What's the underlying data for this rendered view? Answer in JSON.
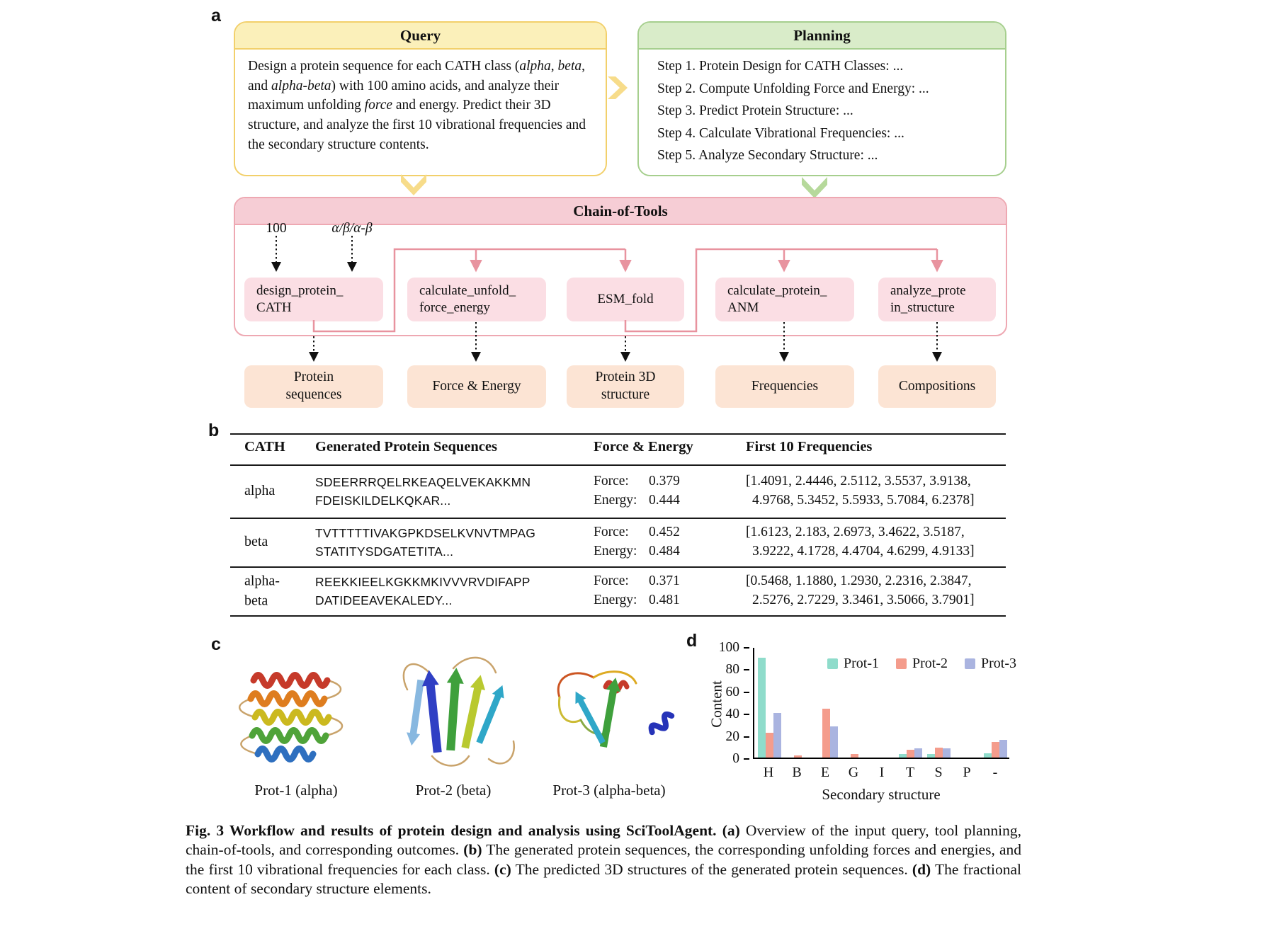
{
  "colors": {
    "query-border": "#F2D06B",
    "query-header": "#FBF0BA",
    "planning-border": "#A6CF8E",
    "planning-header": "#D9ECC9",
    "chain-border": "#EEA8B2",
    "chain-header": "#F6CDD5",
    "tool-bg": "#FBDEE4",
    "outcome-bg": "#FCE4D4",
    "connector-pink": "#E8939F",
    "chevron-yellow": "#F7DC8A",
    "chevron-green": "#B6D99B"
  },
  "panels": {
    "a": "a",
    "b": "b",
    "c": "c",
    "d": "d"
  },
  "query": {
    "title": "Query",
    "segments": [
      {
        "text": "Design a protein sequence for each CATH class (",
        "italic": false
      },
      {
        "text": "alpha",
        "italic": true
      },
      {
        "text": ", ",
        "italic": false
      },
      {
        "text": "beta",
        "italic": true
      },
      {
        "text": ", and ",
        "italic": false
      },
      {
        "text": "alpha-beta",
        "italic": true
      },
      {
        "text": ") with 100 amino acids, and analyze their maximum unfolding ",
        "italic": false
      },
      {
        "text": "force",
        "italic": true
      },
      {
        "text": " and energy. Predict their 3D structure, and analyze the first 10 vibrational frequencies and the secondary structure contents.",
        "italic": false
      }
    ]
  },
  "planning": {
    "title": "Planning",
    "steps": [
      "Step 1. Protein Design for CATH Classes: ...",
      "Step 2. Compute Unfolding Force and Energy: ...",
      "Step 3. Predict Protein Structure: ...",
      "Step 4. Calculate Vibrational Frequencies: ...",
      "Step 5. Analyze Secondary Structure: ..."
    ]
  },
  "chain": {
    "title": "Chain-of-Tools",
    "input_count": "100",
    "input_classes": "α/β/α-β",
    "tools": [
      {
        "line1": "design_protein_",
        "line2": "CATH"
      },
      {
        "line1": "calculate_unfold_",
        "line2": "force_energy"
      },
      {
        "line1": "ESM_fold",
        "line2": ""
      },
      {
        "line1": "calculate_protein_",
        "line2": "ANM"
      },
      {
        "line1": "analyze_prote",
        "line2": "in_structure"
      }
    ],
    "outputs": [
      {
        "line1": "Protein",
        "line2": "sequences"
      },
      {
        "line1": "Force & Energy",
        "line2": ""
      },
      {
        "line1": "Protein 3D",
        "line2": "structure"
      },
      {
        "line1": "Frequencies",
        "line2": ""
      },
      {
        "line1": "Compositions",
        "line2": ""
      }
    ]
  },
  "table": {
    "headers": [
      "CATH",
      "Generated Protein Sequences",
      "Force & Energy",
      "First 10 Frequencies"
    ],
    "rows": [
      {
        "cath": "alpha",
        "cath2": "",
        "seq1": "SDEERRRQELRKEAQELVEKAKKMN",
        "seq2": "FDEISKILDELKQKAR...",
        "force_label": "Force:",
        "force": "0.379",
        "energy_label": "Energy:",
        "energy": "0.444",
        "freq1": "[1.4091, 2.4446, 2.5112, 3.5537, 3.9138,",
        "freq2": "4.9768, 5.3452, 5.5933, 5.7084, 6.2378]"
      },
      {
        "cath": "beta",
        "cath2": "",
        "seq1": "TVTTTTTIVAKGPKDSELKVNVTMPAG",
        "seq2": "STATITYSDGATETITA...",
        "force_label": "Force:",
        "force": "0.452",
        "energy_label": "Energy:",
        "energy": "0.484",
        "freq1": "[1.6123, 2.183, 2.6973, 3.4622, 3.5187,",
        "freq2": "3.9222, 4.1728, 4.4704, 4.6299, 4.9133]"
      },
      {
        "cath": "alpha-",
        "cath2": "beta",
        "seq1": "REEKKIEELKGKKMKIVVVRVDIFAPP",
        "seq2": "DATIDEEAVEKALEDY...",
        "force_label": "Force:",
        "force": "0.371",
        "energy_label": "Energy:",
        "energy": "0.481",
        "freq1": "[0.5468, 1.1880, 1.2930, 2.2316, 2.3847,",
        "freq2": "2.5276, 2.7229, 3.3461, 3.5066, 3.7901]"
      }
    ]
  },
  "proteins": {
    "labels": [
      "Prot-1 (alpha)",
      "Prot-2 (beta)",
      "Prot-3 (alpha-beta)"
    ]
  },
  "chart_data": {
    "type": "bar",
    "categories": [
      "H",
      "B",
      "E",
      "G",
      "I",
      "T",
      "S",
      "P",
      "-"
    ],
    "series": [
      {
        "name": "Prot-1",
        "color": "#8FDCCB",
        "values": [
          90,
          0,
          0,
          0,
          0,
          3,
          3,
          0,
          4
        ]
      },
      {
        "name": "Prot-2",
        "color": "#F49C8C",
        "values": [
          22,
          2,
          44,
          3,
          0,
          7,
          9,
          0,
          14
        ]
      },
      {
        "name": "Prot-3",
        "color": "#AAB4E0",
        "values": [
          40,
          0,
          28,
          0,
          0,
          8,
          8,
          0,
          16
        ]
      }
    ],
    "title": "",
    "xlabel": "Secondary structure",
    "ylabel": "Content",
    "ylim": [
      0,
      100
    ],
    "yticks": [
      0,
      20,
      40,
      60,
      80,
      100
    ],
    "grid": false,
    "legend_position": "top-right"
  },
  "caption": {
    "segments": [
      {
        "text": "Fig. 3  Workflow and results of protein design and analysis using SciToolAgent. (a)",
        "bold": true
      },
      {
        "text": " Overview of the input query, tool planning, chain-of-tools, and corresponding outcomes. ",
        "bold": false
      },
      {
        "text": "(b)",
        "bold": true
      },
      {
        "text": " The generated protein sequences, the corresponding unfolding forces and energies, and the first 10 vibrational frequencies for each class. ",
        "bold": false
      },
      {
        "text": "(c)",
        "bold": true
      },
      {
        "text": " The predicted 3D structures of the generated protein sequences. ",
        "bold": false
      },
      {
        "text": "(d)",
        "bold": true
      },
      {
        "text": " The fractional content of secondary structure elements.",
        "bold": false
      }
    ]
  }
}
